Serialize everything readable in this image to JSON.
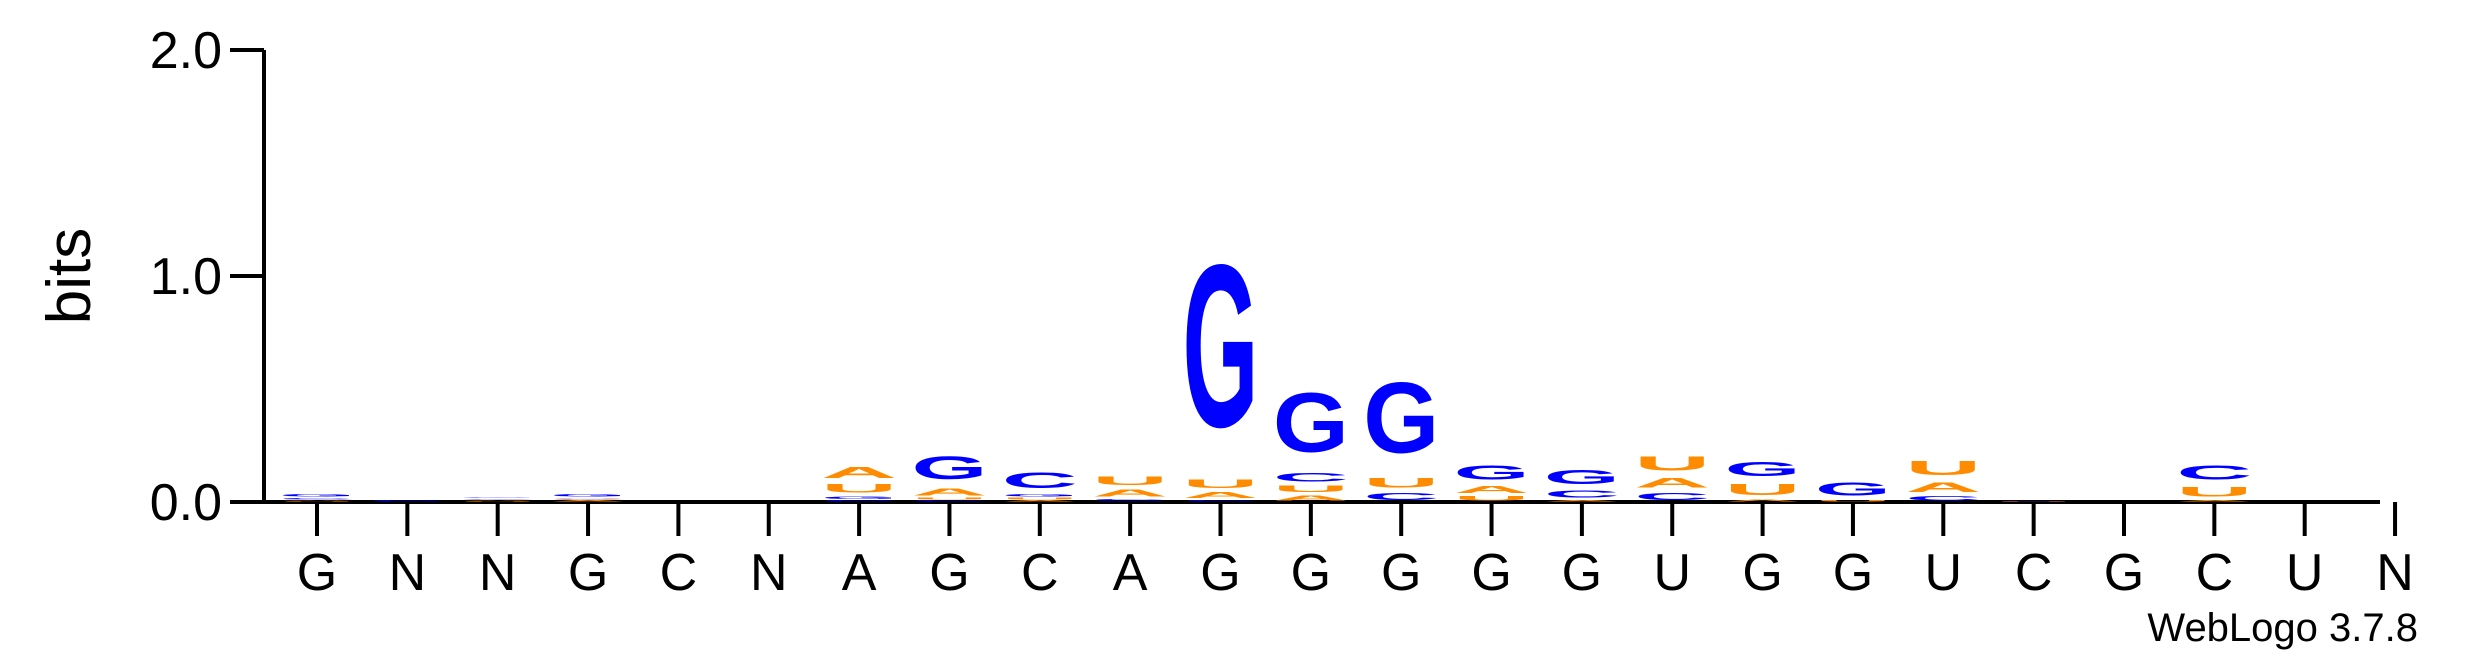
{
  "chart_data": {
    "type": "sequence-logo",
    "ylabel": "bits",
    "ylim": [
      0,
      2.0
    ],
    "yticks": [
      {
        "value": 0.0,
        "label": "0.0"
      },
      {
        "value": 1.0,
        "label": "1.0"
      },
      {
        "value": 2.0,
        "label": "2.0"
      }
    ],
    "xtick_labels": [
      "G",
      "N",
      "N",
      "G",
      "C",
      "N",
      "A",
      "G",
      "C",
      "A",
      "G",
      "G",
      "G",
      "G",
      "G",
      "U",
      "G",
      "G",
      "U",
      "C",
      "G",
      "C",
      "U",
      "N"
    ],
    "colors": {
      "G": "#0000ff",
      "C": "#0000ff",
      "A": "#ff8c00",
      "U": "#ff8c00"
    },
    "positions": [
      [
        {
          "letter": "U",
          "height": 0.005
        },
        {
          "letter": "A",
          "height": 0.005
        },
        {
          "letter": "C",
          "height": 0.01
        },
        {
          "letter": "G",
          "height": 0.02
        }
      ],
      [
        {
          "letter": "C",
          "height": 0.01
        }
      ],
      [
        {
          "letter": "U",
          "height": 0.005
        },
        {
          "letter": "A",
          "height": 0.006
        },
        {
          "letter": "C",
          "height": 0.005
        },
        {
          "letter": "G",
          "height": 0.005
        }
      ],
      [
        {
          "letter": "A",
          "height": 0.01
        },
        {
          "letter": "C",
          "height": 0.005
        },
        {
          "letter": "U",
          "height": 0.006
        },
        {
          "letter": "G",
          "height": 0.02
        }
      ],
      [],
      [],
      [
        {
          "letter": "C",
          "height": 0.01
        },
        {
          "letter": "G",
          "height": 0.02
        },
        {
          "letter": "U",
          "height": 0.06
        },
        {
          "letter": "A",
          "height": 0.08
        }
      ],
      [
        {
          "letter": "C",
          "height": 0.008
        },
        {
          "letter": "U",
          "height": 0.012
        },
        {
          "letter": "A",
          "height": 0.05
        },
        {
          "letter": "G",
          "height": 0.16
        }
      ],
      [
        {
          "letter": "A",
          "height": 0.008
        },
        {
          "letter": "U",
          "height": 0.012
        },
        {
          "letter": "G",
          "height": 0.02
        },
        {
          "letter": "C",
          "height": 0.11
        }
      ],
      [
        {
          "letter": "G",
          "height": 0.006
        },
        {
          "letter": "C",
          "height": 0.008
        },
        {
          "letter": "A",
          "height": 0.05
        },
        {
          "letter": "U",
          "height": 0.06
        }
      ],
      [
        {
          "letter": "C",
          "height": 0.01
        },
        {
          "letter": "A",
          "height": 0.04
        },
        {
          "letter": "U",
          "height": 0.06
        },
        {
          "letter": "G",
          "height": 1.15
        }
      ],
      [
        {
          "letter": "A",
          "height": 0.035
        },
        {
          "letter": "U",
          "height": 0.045
        },
        {
          "letter": "C",
          "height": 0.06
        },
        {
          "letter": "G",
          "height": 0.42
        }
      ],
      [
        {
          "letter": "C",
          "height": 0.05
        },
        {
          "letter": "U",
          "height": 0.07
        },
        {
          "letter": "G",
          "height": 0.5
        }
      ],
      [
        {
          "letter": "U",
          "height": 0.03
        },
        {
          "letter": "A",
          "height": 0.05
        },
        {
          "letter": "G",
          "height": 0.1
        }
      ],
      [
        {
          "letter": "A",
          "height": 0.01
        },
        {
          "letter": "C",
          "height": 0.05
        },
        {
          "letter": "G",
          "height": 0.1
        }
      ],
      [
        {
          "letter": "C",
          "height": 0.05
        },
        {
          "letter": "A",
          "height": 0.07
        },
        {
          "letter": "U",
          "height": 0.1
        }
      ],
      [
        {
          "letter": "A",
          "height": 0.015
        },
        {
          "letter": "U",
          "height": 0.08
        },
        {
          "letter": "G",
          "height": 0.1
        }
      ],
      [
        {
          "letter": "U",
          "height": 0.01
        },
        {
          "letter": "G",
          "height": 0.09
        }
      ],
      [
        {
          "letter": "C",
          "height": 0.03
        },
        {
          "letter": "A",
          "height": 0.07
        },
        {
          "letter": "U",
          "height": 0.1
        }
      ],
      [
        {
          "letter": "U",
          "height": 0.005
        },
        {
          "letter": "C",
          "height": 0.006
        }
      ],
      [],
      [
        {
          "letter": "A",
          "height": 0.01
        },
        {
          "letter": "U",
          "height": 0.07
        },
        {
          "letter": "C",
          "height": 0.1
        }
      ],
      [],
      []
    ],
    "grid": false,
    "legend": "none"
  },
  "footer": {
    "brand": "WebLogo 3.7.8"
  }
}
